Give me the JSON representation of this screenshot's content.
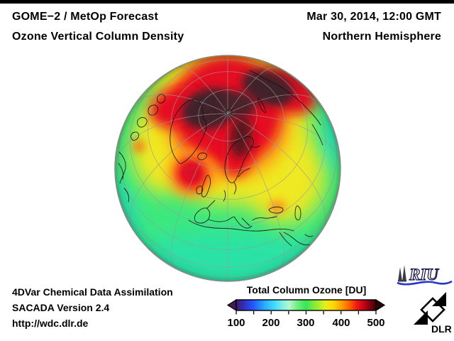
{
  "header": {
    "line1": "GOME−2 / MetOp Forecast",
    "line2": "Ozone Vertical Column Density",
    "datetime": "Mar 30, 2014, 12:00 GMT",
    "region": "Northern Hemisphere"
  },
  "footer": {
    "line1": "4DVar Chemical Data Assimilation",
    "line2": "SACADA Version 2.4",
    "line3": "http://wdc.dlr.de"
  },
  "colorbar": {
    "title": "Total Column Ozone [DU]",
    "tick_labels": [
      "100",
      "200",
      "300",
      "400",
      "500"
    ]
  },
  "logos": {
    "riu_text": "RIU",
    "dlr_text": "DLR"
  },
  "colors": {
    "top_bar": "#000000",
    "text": "#000000",
    "graticule": "#9a9a9a",
    "coastline": "#111111",
    "ozone_green": "#3de87d",
    "ozone_teal": "#2ae2a6",
    "ozone_yellow": "#efe822",
    "ozone_orange": "#ff9916",
    "ozone_red": "#e61022",
    "ozone_polar_dark": "#3f2429",
    "colorbar_left_arrow": "#451a50",
    "colorbar_right_arrow": "#2a050e",
    "riu_blue": "#2633cc"
  },
  "chart_data": {
    "type": "heatmap",
    "title": "Total Column Ozone [DU]",
    "units": "DU",
    "scale": {
      "min": 100,
      "max": 500,
      "ticks": [
        100,
        200,
        300,
        400,
        500
      ],
      "minor_tick_step": 50,
      "colormap": [
        {
          "value": 100,
          "color": "#401a70"
        },
        {
          "value": 150,
          "color": "#2257ff"
        },
        {
          "value": 200,
          "color": "#28a8ff"
        },
        {
          "value": 250,
          "color": "#b5f7cf"
        },
        {
          "value": 300,
          "color": "#38e756"
        },
        {
          "value": 360,
          "color": "#e8ee1c"
        },
        {
          "value": 410,
          "color": "#ff9a00"
        },
        {
          "value": 450,
          "color": "#f01a14"
        },
        {
          "value": 500,
          "color": "#40010d"
        }
      ]
    },
    "projection": {
      "type": "orthographic",
      "hemisphere": "Northern",
      "approx_center": "about 60N over the North Atlantic / Europe",
      "graticule_spacing_deg": {
        "parallels": 15,
        "meridians": 30
      }
    },
    "regions": [
      {
        "area": "Arctic Ocean, Canadian Archipelago, Greenland, Kara Sea (polar maximum)",
        "approx_value_DU": "500+"
      },
      {
        "area": "ring around the pole incl. northern Scandinavia and Siberian coast",
        "approx_value_DU": "440-490"
      },
      {
        "area": "closed maximum over North Atlantic west of the British Isles",
        "approx_value_DU": "430-460"
      },
      {
        "area": "mid-latitude band over Siberia, central Asia and the Mediterranean",
        "approx_value_DU": "340-380"
      },
      {
        "area": "small spot near Black Sea / Caspian",
        "approx_value_DU": "400"
      },
      {
        "area": "subtropics (Africa, Arabia) and most of the lower disk",
        "approx_value_DU": "290-310"
      },
      {
        "area": "equatorward limb at bottom and side edges",
        "approx_value_DU": "260-290"
      }
    ]
  }
}
